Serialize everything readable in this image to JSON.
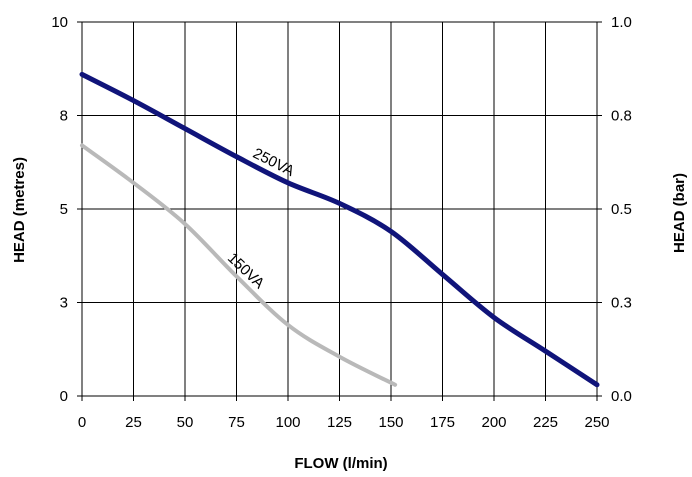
{
  "chart_data": {
    "type": "line",
    "title": "",
    "xlabel": "FLOW (l/min)",
    "ylabel": "HEAD (metres)",
    "y2label": "HEAD (bar)",
    "xlim": [
      0,
      250
    ],
    "ylim": [
      0,
      10
    ],
    "y2lim": [
      0.0,
      1.0
    ],
    "x_ticks": [
      "0",
      "25",
      "50",
      "75",
      "100",
      "125",
      "150",
      "175",
      "200",
      "225",
      "250"
    ],
    "y_ticks": [
      "0",
      "3",
      "5",
      "8",
      "10"
    ],
    "y2_ticks": [
      "0.0",
      "0.3",
      "0.5",
      "0.8",
      "1.0"
    ],
    "grid": true,
    "series": [
      {
        "name": "250VA",
        "color": "#10147a",
        "x": [
          0,
          25,
          50,
          75,
          100,
          125,
          150,
          175,
          200,
          225,
          250
        ],
        "y": [
          8.6,
          7.9,
          7.15,
          6.4,
          5.7,
          5.15,
          4.4,
          3.25,
          2.1,
          1.2,
          0.3
        ]
      },
      {
        "name": "150VA",
        "color": "#b9b9b9",
        "x": [
          0,
          25,
          50,
          75,
          100,
          125,
          152
        ],
        "y": [
          6.7,
          5.7,
          4.6,
          3.2,
          1.9,
          1.05,
          0.3
        ]
      }
    ]
  }
}
